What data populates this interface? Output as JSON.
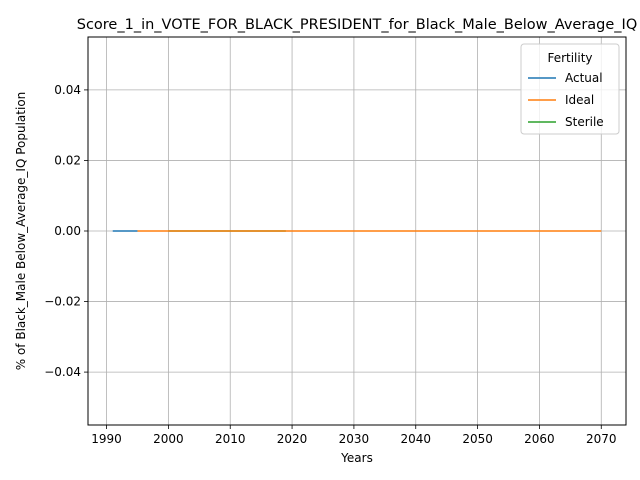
{
  "chart_data": {
    "type": "line",
    "title": "Score_1_in_VOTE_FOR_BLACK_PRESIDENT_for_Black_Male_Below_Average_IQ",
    "xlabel": "Years",
    "ylabel": "% of Black_Male Below_Average_IQ Population",
    "xlim": [
      1987,
      2074
    ],
    "ylim": [
      -0.055,
      0.055
    ],
    "x_ticks": [
      1990,
      2000,
      2010,
      2020,
      2030,
      2040,
      2050,
      2060,
      2070
    ],
    "y_ticks": [
      -0.04,
      -0.02,
      0.0,
      0.02,
      0.04
    ],
    "y_tick_labels": [
      "−0.04",
      "−0.02",
      "0.00",
      "0.02",
      "0.04"
    ],
    "grid": true,
    "legend": {
      "title": "Fertility",
      "placement": "top-right"
    },
    "series": [
      {
        "name": "Actual",
        "color": "#1f77b4",
        "x": [
          1991,
          1995
        ],
        "y": [
          0.0,
          0.0
        ]
      },
      {
        "name": "Ideal",
        "color": "#ff7f0e",
        "x": [
          1995,
          2070
        ],
        "y": [
          0.0,
          0.0
        ]
      },
      {
        "name": "Sterile",
        "color": "#2ca02c",
        "x": [
          2000,
          2019
        ],
        "y": [
          0.0,
          0.0
        ]
      }
    ]
  }
}
